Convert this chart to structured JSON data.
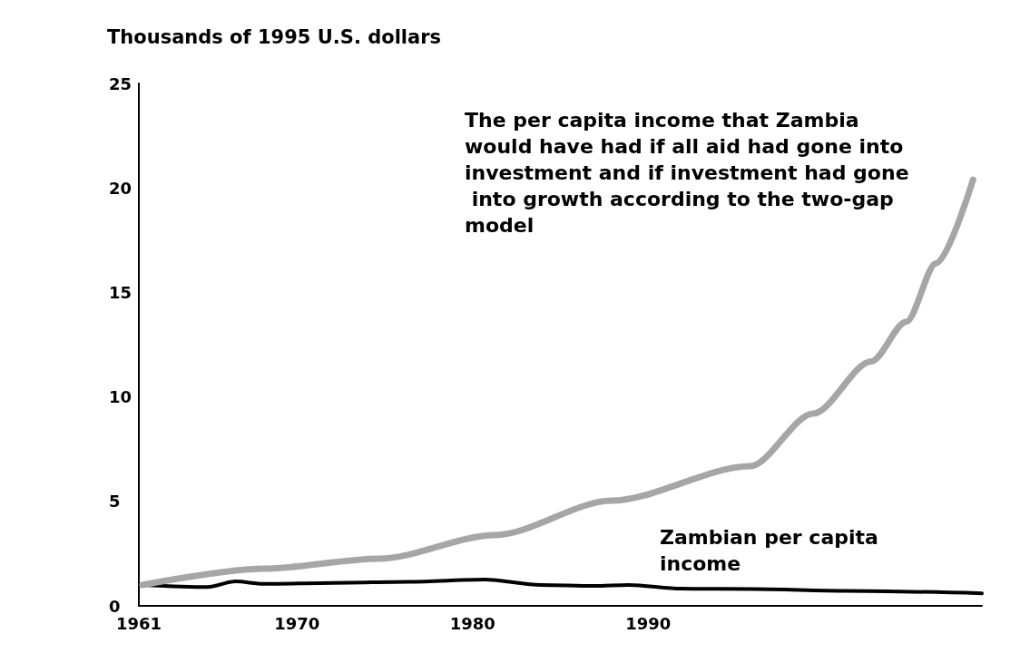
{
  "chart_data": {
    "type": "line",
    "ylabel": "Thousands of 1995 U.S. dollars",
    "xlim": [
      1961,
      2009
    ],
    "xticks": [
      1961,
      1970,
      1980,
      1990
    ],
    "ylim": [
      0,
      25
    ],
    "yticks": [
      0,
      5,
      10,
      15,
      20,
      25
    ],
    "grid": false,
    "legend": false,
    "marker": "none",
    "line_style": "solid",
    "series": [
      {
        "name": "The per capita income that Zambia would have had if all aid had gone into investment and if investment had gone into growth according to the two-gap model",
        "color": "#a6a6a6",
        "x": [
          1961.2,
          1968.1,
          1974.7,
          1981.3,
          1987.9,
          1995.8,
          1999.4,
          2002.7,
          2004.7,
          2006.4,
          2008.5
        ],
        "values": [
          1.0,
          1.78,
          2.26,
          3.39,
          5.03,
          6.68,
          9.2,
          11.7,
          13.6,
          16.4,
          20.4
        ]
      },
      {
        "name": "Zambian per capita income",
        "color": "#000000",
        "x": [
          1961.2,
          1964.9,
          1966.5,
          1968.1,
          1972.1,
          1976.4,
          1980.7,
          1983.9,
          1986.9,
          1988.9,
          1991.9,
          1996.1,
          2001.1,
          2009
        ],
        "values": [
          1.0,
          0.9,
          1.17,
          1.05,
          1.1,
          1.15,
          1.26,
          1.0,
          0.95,
          1.0,
          0.82,
          0.8,
          0.72,
          0.6
        ]
      }
    ]
  }
}
